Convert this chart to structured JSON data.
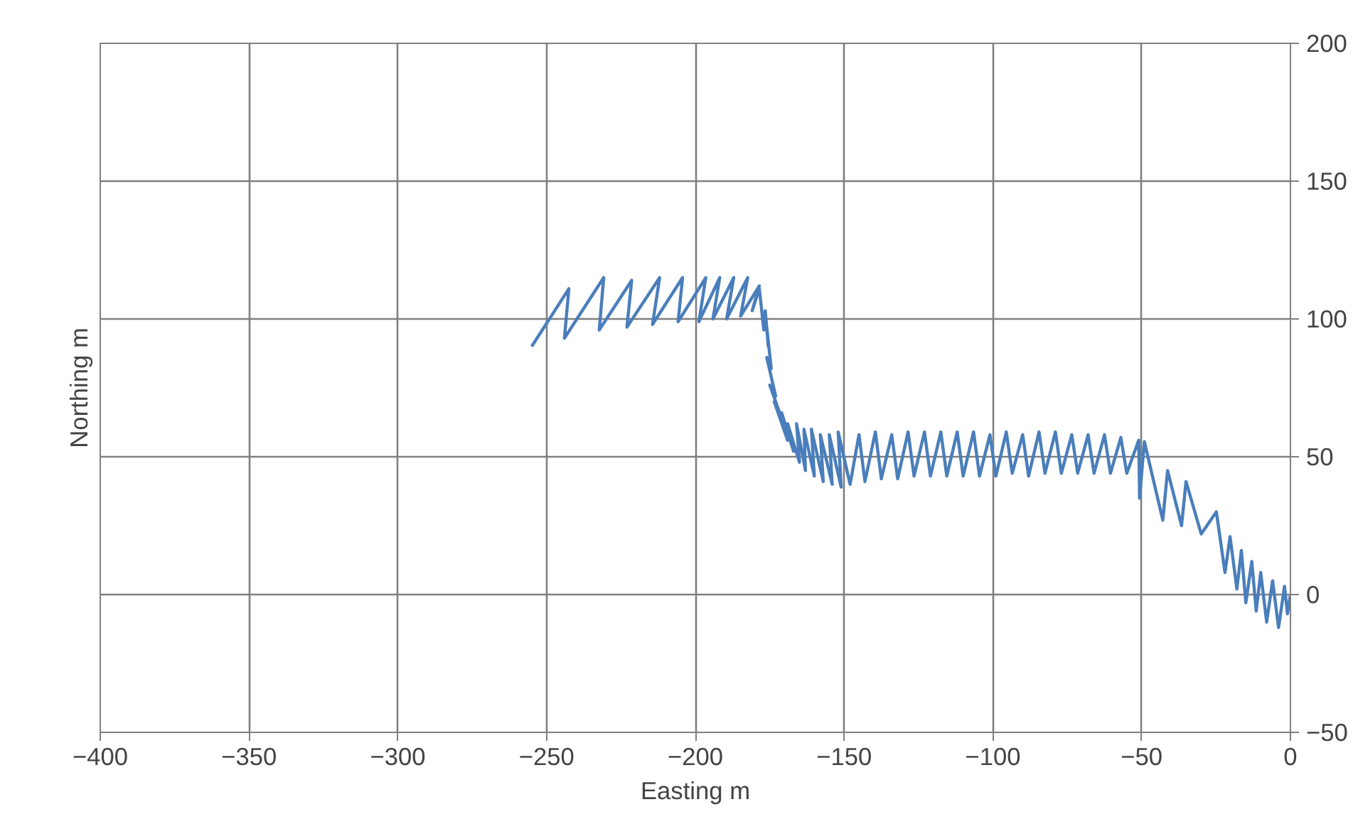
{
  "chart_data": {
    "type": "line",
    "xlabel": "Easting m",
    "ylabel": "Northing m",
    "xlim": [
      -400,
      0
    ],
    "ylim": [
      -50,
      200
    ],
    "xticks": [
      -400,
      -350,
      -300,
      -250,
      -200,
      -150,
      -100,
      -50,
      0
    ],
    "yticks": [
      -50,
      0,
      50,
      100,
      150,
      200
    ],
    "grid": true,
    "marker": "none",
    "line_style": "solid",
    "series": [
      {
        "color": "#4a7ebb",
        "x": [
          -255,
          -242.5,
          -244,
          -230.8,
          -232.3,
          -221.4,
          -223,
          -212,
          -214.4,
          -204.3,
          -205.8,
          -196.5,
          -198.8,
          -191.8,
          -194.1,
          -187.1,
          -189.5,
          -182.4,
          -184.8,
          -178.5,
          -180.9,
          -178.5,
          -177,
          -176.5,
          -175.5,
          -176,
          -174.5,
          -176,
          -173,
          -175,
          -171,
          -173.5,
          -169,
          -171,
          -167,
          -169,
          -165,
          -166,
          -163,
          -163.5,
          -160,
          -161,
          -157,
          -158,
          -154,
          -155,
          -151,
          -152,
          -148,
          -145,
          -143,
          -139.5,
          -137.5,
          -134,
          -132,
          -128.5,
          -126.5,
          -123,
          -121,
          -117.5,
          -115.5,
          -112,
          -110,
          -106.5,
          -104.5,
          -101,
          -99,
          -95.5,
          -93.5,
          -90,
          -88,
          -84.5,
          -82.5,
          -79,
          -77,
          -73.5,
          -71.5,
          -68,
          -66,
          -62.5,
          -60.5,
          -57,
          -55,
          -51,
          -50.7,
          -49.1,
          -42.9,
          -41.3,
          -36.6,
          -35.1,
          -30,
          -24.9,
          -22,
          -20.3,
          -18,
          -16.5,
          -15,
          -13,
          -11.5,
          -10,
          -8,
          -6,
          -4,
          -2,
          -1,
          0
        ],
        "values": [
          90,
          111,
          93,
          115,
          96,
          114,
          97,
          115,
          98,
          115,
          99,
          115,
          99,
          115,
          100,
          115,
          100,
          115,
          101,
          112,
          103,
          111,
          96,
          103,
          90,
          97,
          82,
          86,
          72,
          76,
          64,
          70,
          56,
          66,
          52,
          62,
          48,
          62,
          45,
          60,
          43,
          60,
          41,
          58,
          40,
          58,
          39,
          59,
          40,
          58,
          41,
          59,
          42,
          58,
          42,
          59,
          43,
          59,
          43,
          59,
          43,
          59,
          43,
          59,
          43,
          58,
          43,
          59,
          44,
          58,
          43,
          59,
          44,
          59,
          44,
          58,
          44,
          58,
          44,
          58,
          44,
          57,
          44,
          56,
          35,
          55.5,
          27,
          45,
          25,
          41,
          22,
          30,
          8,
          21,
          2,
          16,
          -3,
          12,
          -6,
          8,
          -10,
          5,
          -12,
          3,
          -7,
          0
        ]
      }
    ]
  }
}
